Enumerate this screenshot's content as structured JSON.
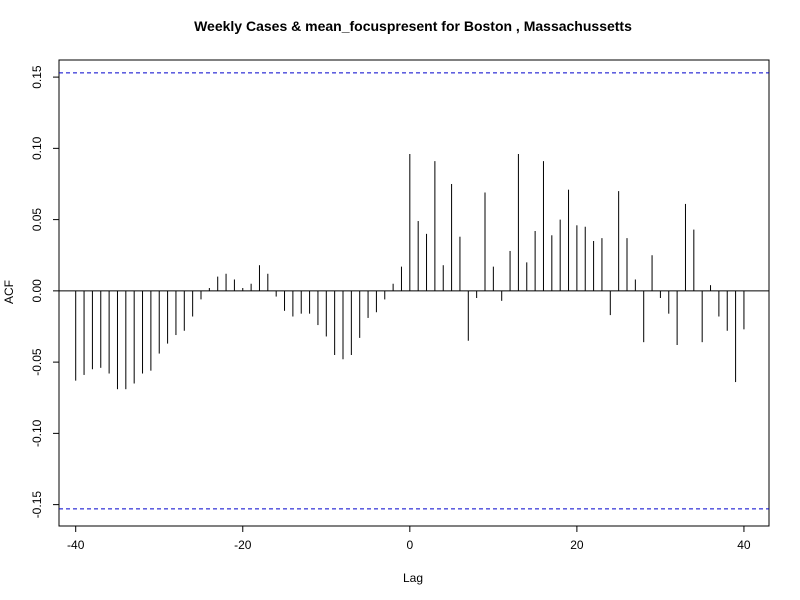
{
  "chart_data": {
    "type": "bar",
    "title": "Weekly Cases & mean_focuspresent for Boston , Massachussetts",
    "xlabel": "Lag",
    "ylabel": "ACF",
    "xlim": [
      -42,
      43
    ],
    "ylim": [
      -0.165,
      0.162
    ],
    "x_ticks": [
      -40,
      -20,
      0,
      20,
      40
    ],
    "y_ticks": [
      -0.15,
      -0.1,
      -0.05,
      0.0,
      0.05,
      0.1,
      0.15
    ],
    "x_tick_labels": [
      "-40",
      "-20",
      "0",
      "20",
      "40"
    ],
    "y_tick_labels": [
      "-0.15",
      "-0.10",
      "-0.05",
      "0.00",
      "0.05",
      "0.10",
      "0.15"
    ],
    "confidence_bound": 0.153,
    "colors": {
      "bars": "#000000",
      "confidence": "#0000cc",
      "zero_line": "#000000"
    },
    "lags": [
      -40,
      -39,
      -38,
      -37,
      -36,
      -35,
      -34,
      -33,
      -32,
      -31,
      -30,
      -29,
      -28,
      -27,
      -26,
      -25,
      -24,
      -23,
      -22,
      -21,
      -20,
      -19,
      -18,
      -17,
      -16,
      -15,
      -14,
      -13,
      -12,
      -11,
      -10,
      -9,
      -8,
      -7,
      -6,
      -5,
      -4,
      -3,
      -2,
      -1,
      0,
      1,
      2,
      3,
      4,
      5,
      6,
      7,
      8,
      9,
      10,
      11,
      12,
      13,
      14,
      15,
      16,
      17,
      18,
      19,
      20,
      21,
      22,
      23,
      24,
      25,
      26,
      27,
      28,
      29,
      30,
      31,
      32,
      33,
      34,
      35,
      36,
      37,
      38,
      39,
      40
    ],
    "values": [
      -0.063,
      -0.059,
      -0.055,
      -0.054,
      -0.058,
      -0.069,
      -0.069,
      -0.065,
      -0.058,
      -0.056,
      -0.044,
      -0.037,
      -0.031,
      -0.028,
      -0.018,
      -0.006,
      0.002,
      0.01,
      0.012,
      0.008,
      0.002,
      0.005,
      0.018,
      0.012,
      -0.004,
      -0.014,
      -0.018,
      -0.016,
      -0.016,
      -0.024,
      -0.032,
      -0.045,
      -0.048,
      -0.045,
      -0.033,
      -0.019,
      -0.015,
      -0.006,
      0.005,
      0.017,
      0.096,
      0.049,
      0.04,
      0.091,
      0.018,
      0.075,
      0.038,
      -0.035,
      -0.005,
      0.069,
      0.017,
      -0.007,
      0.028,
      0.096,
      0.02,
      0.042,
      0.091,
      0.039,
      0.05,
      0.071,
      0.046,
      0.045,
      0.035,
      0.037,
      -0.017,
      0.07,
      0.037,
      0.008,
      -0.036,
      0.025,
      -0.005,
      -0.016,
      -0.038,
      0.061,
      0.043,
      -0.036,
      0.004,
      -0.018,
      -0.028,
      -0.064,
      -0.027
    ]
  }
}
